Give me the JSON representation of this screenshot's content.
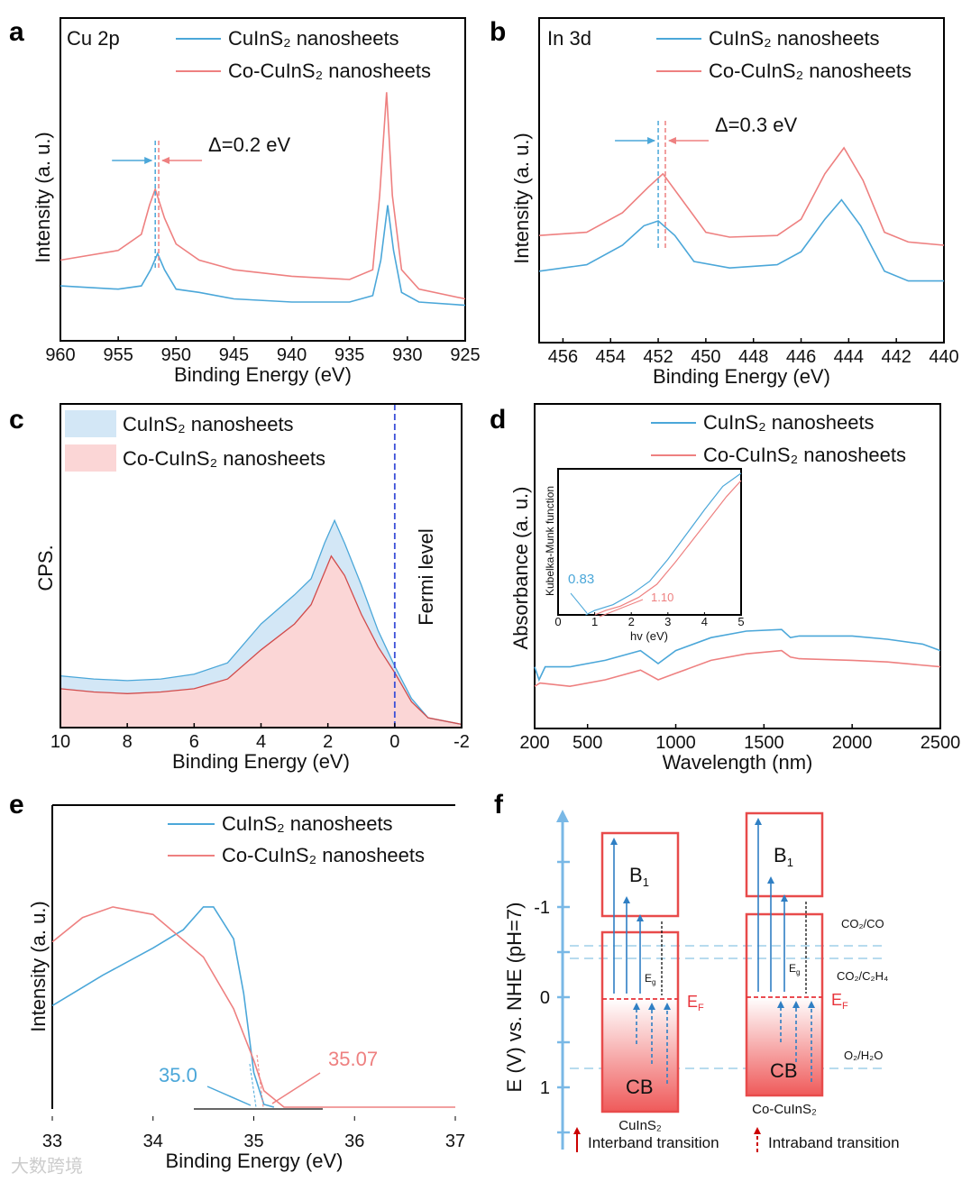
{
  "colors": {
    "blue": "#4ba7d9",
    "red": "#ee8080",
    "blue_fill": "#d3e7f6",
    "red_fill": "#fbd6d6",
    "fermi": "#3b4fd8",
    "ef_red": "#e8333a"
  },
  "watermark": "大数跨境",
  "chart_data": [
    {
      "panel": "a",
      "type": "line",
      "tag": "Cu 2p",
      "xlabel": "Binding Energy (eV)",
      "ylabel": "Intensity (a. u.)",
      "xlim": [
        960,
        925
      ],
      "ylim": [
        0,
        100
      ],
      "xticks": [
        960,
        955,
        950,
        945,
        940,
        935,
        930,
        925
      ],
      "annotation": "Δ=0.2 eV",
      "peak_markers": [
        951.8,
        951.5
      ],
      "series": [
        {
          "name": "CuInS₂ nanosheets",
          "color": "blue",
          "points": [
            [
              960,
              17
            ],
            [
              955,
              16
            ],
            [
              953,
              17
            ],
            [
              952.2,
              22
            ],
            [
              951.6,
              27
            ],
            [
              951,
              22
            ],
            [
              950,
              16
            ],
            [
              948,
              15
            ],
            [
              945,
              13
            ],
            [
              940,
              12
            ],
            [
              935,
              12
            ],
            [
              933,
              14
            ],
            [
              932.3,
              25
            ],
            [
              931.7,
              42
            ],
            [
              931.2,
              28
            ],
            [
              930.5,
              15
            ],
            [
              929,
              12
            ],
            [
              925,
              11
            ]
          ]
        },
        {
          "name": "Co-CuInS₂ nanosheets",
          "color": "red",
          "points": [
            [
              960,
              25
            ],
            [
              955,
              28
            ],
            [
              953,
              33
            ],
            [
              952.3,
              42
            ],
            [
              951.8,
              47
            ],
            [
              951,
              38
            ],
            [
              950,
              30
            ],
            [
              948,
              25
            ],
            [
              945,
              22
            ],
            [
              940,
              20
            ],
            [
              935,
              19
            ],
            [
              933,
              22
            ],
            [
              932.4,
              45
            ],
            [
              931.8,
              77
            ],
            [
              931.3,
              45
            ],
            [
              930.5,
              22
            ],
            [
              929,
              16
            ],
            [
              925,
              13
            ]
          ]
        }
      ]
    },
    {
      "panel": "b",
      "type": "line",
      "tag": "In 3d",
      "xlabel": "Binding Energy (eV)",
      "ylabel": "Intensity (a. u.)",
      "xlim": [
        457,
        440
      ],
      "ylim": [
        0,
        100
      ],
      "xticks": [
        456,
        454,
        452,
        450,
        448,
        446,
        444,
        442,
        440
      ],
      "annotation": "Δ=0.3 eV",
      "peak_markers": [
        452.0,
        451.7
      ],
      "series": [
        {
          "name": "CuInS₂ nanosheets",
          "color": "blue",
          "points": [
            [
              457,
              22
            ],
            [
              455,
              24
            ],
            [
              453.5,
              30
            ],
            [
              452.6,
              36
            ],
            [
              452,
              37.5
            ],
            [
              451.3,
              33
            ],
            [
              450.5,
              25
            ],
            [
              449,
              23
            ],
            [
              447,
              24
            ],
            [
              446,
              28
            ],
            [
              445,
              38
            ],
            [
              444.3,
              44
            ],
            [
              443.5,
              36
            ],
            [
              442.5,
              22
            ],
            [
              441.5,
              19
            ],
            [
              440,
              19
            ]
          ]
        },
        {
          "name": "Co-CuInS₂ nanosheets",
          "color": "red",
          "points": [
            [
              457,
              33
            ],
            [
              455,
              34
            ],
            [
              453.5,
              40
            ],
            [
              452.4,
              48
            ],
            [
              451.8,
              52
            ],
            [
              451,
              44
            ],
            [
              450,
              34
            ],
            [
              449,
              32.5
            ],
            [
              447,
              33
            ],
            [
              446,
              38
            ],
            [
              445,
              52
            ],
            [
              444.2,
              60
            ],
            [
              443.4,
              50
            ],
            [
              442.5,
              34
            ],
            [
              441.5,
              31
            ],
            [
              440,
              30
            ]
          ]
        }
      ]
    },
    {
      "panel": "c",
      "type": "area",
      "xlabel": "Binding Energy (eV)",
      "ylabel": "CPS.",
      "xlim": [
        10,
        -2
      ],
      "ylim": [
        0,
        100
      ],
      "xticks": [
        10,
        8,
        6,
        4,
        2,
        0,
        -2
      ],
      "annotation": "Fermi level",
      "fermi_level": 0,
      "series": [
        {
          "name": "CuInS₂ nanosheets",
          "color": "blue",
          "points": [
            [
              10,
              16
            ],
            [
              9,
              15
            ],
            [
              8,
              14.5
            ],
            [
              7,
              15
            ],
            [
              6,
              16.5
            ],
            [
              5,
              20
            ],
            [
              4,
              32
            ],
            [
              3,
              41
            ],
            [
              2.5,
              46
            ],
            [
              2.1,
              57
            ],
            [
              1.8,
              64
            ],
            [
              1.5,
              57
            ],
            [
              1,
              44
            ],
            [
              0.5,
              30
            ],
            [
              0,
              19
            ],
            [
              -0.5,
              9
            ],
            [
              -1,
              3
            ],
            [
              -2,
              1
            ]
          ]
        },
        {
          "name": "Co-CuInS₂ nanosheets",
          "color": "red",
          "points": [
            [
              10,
              12
            ],
            [
              9,
              11
            ],
            [
              8,
              10.5
            ],
            [
              7,
              11
            ],
            [
              6,
              12
            ],
            [
              5,
              15
            ],
            [
              4,
              24
            ],
            [
              3,
              32
            ],
            [
              2.5,
              38
            ],
            [
              2.1,
              48
            ],
            [
              1.9,
              53
            ],
            [
              1.5,
              47
            ],
            [
              1,
              35
            ],
            [
              0.5,
              25
            ],
            [
              0,
              17
            ],
            [
              -0.5,
              8
            ],
            [
              -1,
              3
            ],
            [
              -2,
              1
            ]
          ]
        }
      ]
    },
    {
      "panel": "d",
      "type": "line",
      "xlabel": "Wavelength (nm)",
      "ylabel": "Absorbance (a. u.)",
      "xlim": [
        200,
        2500
      ],
      "ylim": [
        0,
        100
      ],
      "xticks": [
        200,
        500,
        1000,
        1500,
        2000,
        2500
      ],
      "series": [
        {
          "name": "CuInS₂ nanosheets",
          "color": "blue",
          "points": [
            [
              200,
              19
            ],
            [
              225,
              15
            ],
            [
              260,
              19
            ],
            [
              400,
              19
            ],
            [
              600,
              21
            ],
            [
              800,
              24
            ],
            [
              900,
              20
            ],
            [
              1000,
              24
            ],
            [
              1200,
              28
            ],
            [
              1400,
              30
            ],
            [
              1600,
              30.5
            ],
            [
              1650,
              28
            ],
            [
              1700,
              28.5
            ],
            [
              2000,
              28.5
            ],
            [
              2200,
              27.5
            ],
            [
              2400,
              26
            ],
            [
              2500,
              24
            ]
          ]
        },
        {
          "name": "Co-CuInS₂ nanosheets",
          "color": "red",
          "points": [
            [
              200,
              13
            ],
            [
              230,
              14
            ],
            [
              400,
              13
            ],
            [
              600,
              15
            ],
            [
              800,
              18
            ],
            [
              900,
              15
            ],
            [
              1000,
              17
            ],
            [
              1200,
              21
            ],
            [
              1400,
              23
            ],
            [
              1600,
              24
            ],
            [
              1650,
              22
            ],
            [
              1700,
              21.5
            ],
            [
              2000,
              21
            ],
            [
              2200,
              20.5
            ],
            [
              2500,
              19
            ]
          ]
        }
      ],
      "inset": {
        "type": "line",
        "xlabel": "hv (eV)",
        "ylabel": "Kubelka-Munk function",
        "xlim": [
          0,
          5
        ],
        "ylim": [
          0,
          100
        ],
        "xticks": [
          0,
          1,
          2,
          3,
          4,
          5
        ],
        "bandgaps": [
          {
            "value": "0.83",
            "color": "blue"
          },
          {
            "value": "1.10",
            "color": "red"
          }
        ],
        "series": [
          {
            "name": "CuInS₂ nanosheets",
            "color": "blue",
            "points": [
              [
                0.75,
                0
              ],
              [
                1,
                3
              ],
              [
                1.5,
                7
              ],
              [
                2,
                14
              ],
              [
                2.5,
                23
              ],
              [
                3,
                38
              ],
              [
                3.5,
                55
              ],
              [
                4,
                72
              ],
              [
                4.5,
                88
              ],
              [
                5,
                97
              ]
            ]
          },
          {
            "name": "Co-CuInS₂ nanosheets",
            "color": "red",
            "points": [
              [
                1.0,
                0
              ],
              [
                1.3,
                3
              ],
              [
                1.7,
                6
              ],
              [
                2.2,
                12
              ],
              [
                2.7,
                21
              ],
              [
                3.2,
                36
              ],
              [
                3.7,
                52
              ],
              [
                4.2,
                68
              ],
              [
                4.6,
                81
              ],
              [
                5,
                92
              ]
            ]
          }
        ]
      }
    },
    {
      "panel": "e",
      "type": "line",
      "xlabel": "Binding Energy (eV)",
      "ylabel": "Intensity (a. u.)",
      "xlim": [
        33,
        37
      ],
      "ylim": [
        0,
        100
      ],
      "xticks": [
        33,
        34,
        35,
        36,
        37
      ],
      "cutoffs": [
        {
          "value": "35.0",
          "color": "blue"
        },
        {
          "value": "35.07",
          "color": "red"
        }
      ],
      "series": [
        {
          "name": "CuInS₂ nanosheets",
          "color": "blue",
          "points": [
            [
              33,
              34
            ],
            [
              33.5,
              44
            ],
            [
              34,
              53
            ],
            [
              34.3,
              59
            ],
            [
              34.5,
              66.5
            ],
            [
              34.6,
              66.5
            ],
            [
              34.8,
              56
            ],
            [
              34.9,
              38
            ],
            [
              35,
              12
            ],
            [
              35.1,
              1.5
            ],
            [
              35.2,
              0.6
            ]
          ]
        },
        {
          "name": "Co-CuInS₂ nanosheets",
          "color": "red",
          "points": [
            [
              33,
              55
            ],
            [
              33.3,
              63
            ],
            [
              33.6,
              66.5
            ],
            [
              34,
              64
            ],
            [
              34.5,
              50
            ],
            [
              34.8,
              33
            ],
            [
              35,
              16
            ],
            [
              35.1,
              6
            ],
            [
              35.3,
              0.6
            ],
            [
              37,
              0.6
            ]
          ]
        }
      ]
    },
    {
      "panel": "f",
      "type": "diagram",
      "ylabel": "E (V) vs. NHE (pH=7)",
      "ylim": [
        -2.0,
        1.6
      ],
      "yticks": [
        -1,
        0,
        1
      ],
      "materials": [
        {
          "name": "CuInS₂",
          "b1_label": "B1",
          "cb_label": "CB",
          "eg_label": "Eg",
          "ef_label": "EF",
          "b1": [
            -1.82,
            -0.9
          ],
          "cb": [
            -0.72,
            1.27
          ],
          "ef": 0.02
        },
        {
          "name": "Co-CuInS₂",
          "b1_label": "B1",
          "cb_label": "CB",
          "eg_label": "Eg",
          "ef_label": "EF",
          "b1": [
            -2.04,
            -1.12
          ],
          "cb": [
            -0.92,
            1.09
          ],
          "ef": 0.0
        }
      ],
      "redox": [
        {
          "label": "CO₂/CO",
          "potential": -0.57
        },
        {
          "label": "CO₂/C₂H₄",
          "potential": -0.43
        },
        {
          "label": "O₂/H₂O",
          "potential": 0.79
        }
      ],
      "legend": [
        "Interband transition",
        "Intraband transition"
      ]
    }
  ]
}
